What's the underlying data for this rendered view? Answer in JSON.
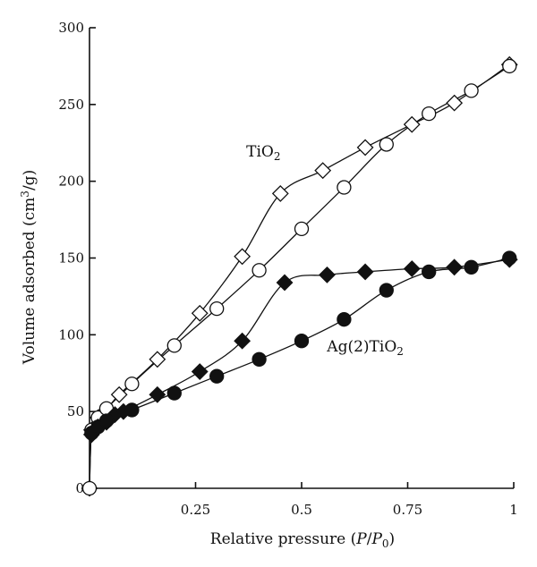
{
  "chart_data": {
    "type": "line",
    "title": "",
    "xlabel_parts": [
      "Relative pressure (",
      "P",
      "/",
      "P",
      "0",
      ")"
    ],
    "ylabel_parts": [
      "Volume adsorbed (cm",
      "3",
      "/g)"
    ],
    "xlim": [
      0,
      1
    ],
    "ylim": [
      0,
      300
    ],
    "xticks": [
      0.25,
      0.5,
      0.75,
      1
    ],
    "xtick_labels": [
      "0.25",
      "0.5",
      "0.75",
      "1"
    ],
    "yticks": [
      0,
      50,
      100,
      150,
      200,
      250,
      300
    ],
    "ytick_labels": [
      "0",
      "50",
      "100",
      "150",
      "200",
      "250",
      "300"
    ],
    "grid": false,
    "legend": "none",
    "annotations": [
      {
        "text_parts": [
          "TiO",
          "2"
        ],
        "x": 0.41,
        "y": 216
      },
      {
        "text_parts": [
          "Ag(2)TiO",
          "2"
        ],
        "x": 0.65,
        "y": 89
      }
    ],
    "series": [
      {
        "marker": "open-diamond",
        "x": [
          0.0,
          0.005,
          0.02,
          0.04,
          0.07,
          0.16,
          0.26,
          0.36,
          0.45,
          0.55,
          0.65,
          0.76,
          0.86,
          0.99
        ],
        "y": [
          0,
          38,
          46,
          51,
          61,
          84,
          114,
          151,
          192,
          207,
          222,
          237,
          251,
          276
        ]
      },
      {
        "marker": "open-circle",
        "x": [
          0.0,
          0.005,
          0.02,
          0.04,
          0.1,
          0.2,
          0.3,
          0.4,
          0.5,
          0.6,
          0.7,
          0.8,
          0.9,
          0.99
        ],
        "y": [
          0,
          38,
          46,
          52,
          68,
          93,
          117,
          142,
          169,
          196,
          224,
          244,
          259,
          275
        ]
      },
      {
        "marker": "filled-diamond",
        "x": [
          0.005,
          0.02,
          0.04,
          0.06,
          0.08,
          0.16,
          0.26,
          0.36,
          0.46,
          0.56,
          0.65,
          0.76,
          0.86,
          0.99
        ],
        "y": [
          35,
          40,
          43,
          48,
          50,
          61,
          76,
          96,
          134,
          139,
          141,
          143,
          144,
          149
        ]
      },
      {
        "marker": "filled-circle",
        "x": [
          0.005,
          0.02,
          0.04,
          0.1,
          0.2,
          0.3,
          0.4,
          0.5,
          0.6,
          0.7,
          0.8,
          0.9,
          0.99
        ],
        "y": [
          36,
          40,
          44,
          51,
          62,
          73,
          84,
          96,
          110,
          129,
          141,
          144,
          150
        ]
      }
    ]
  }
}
